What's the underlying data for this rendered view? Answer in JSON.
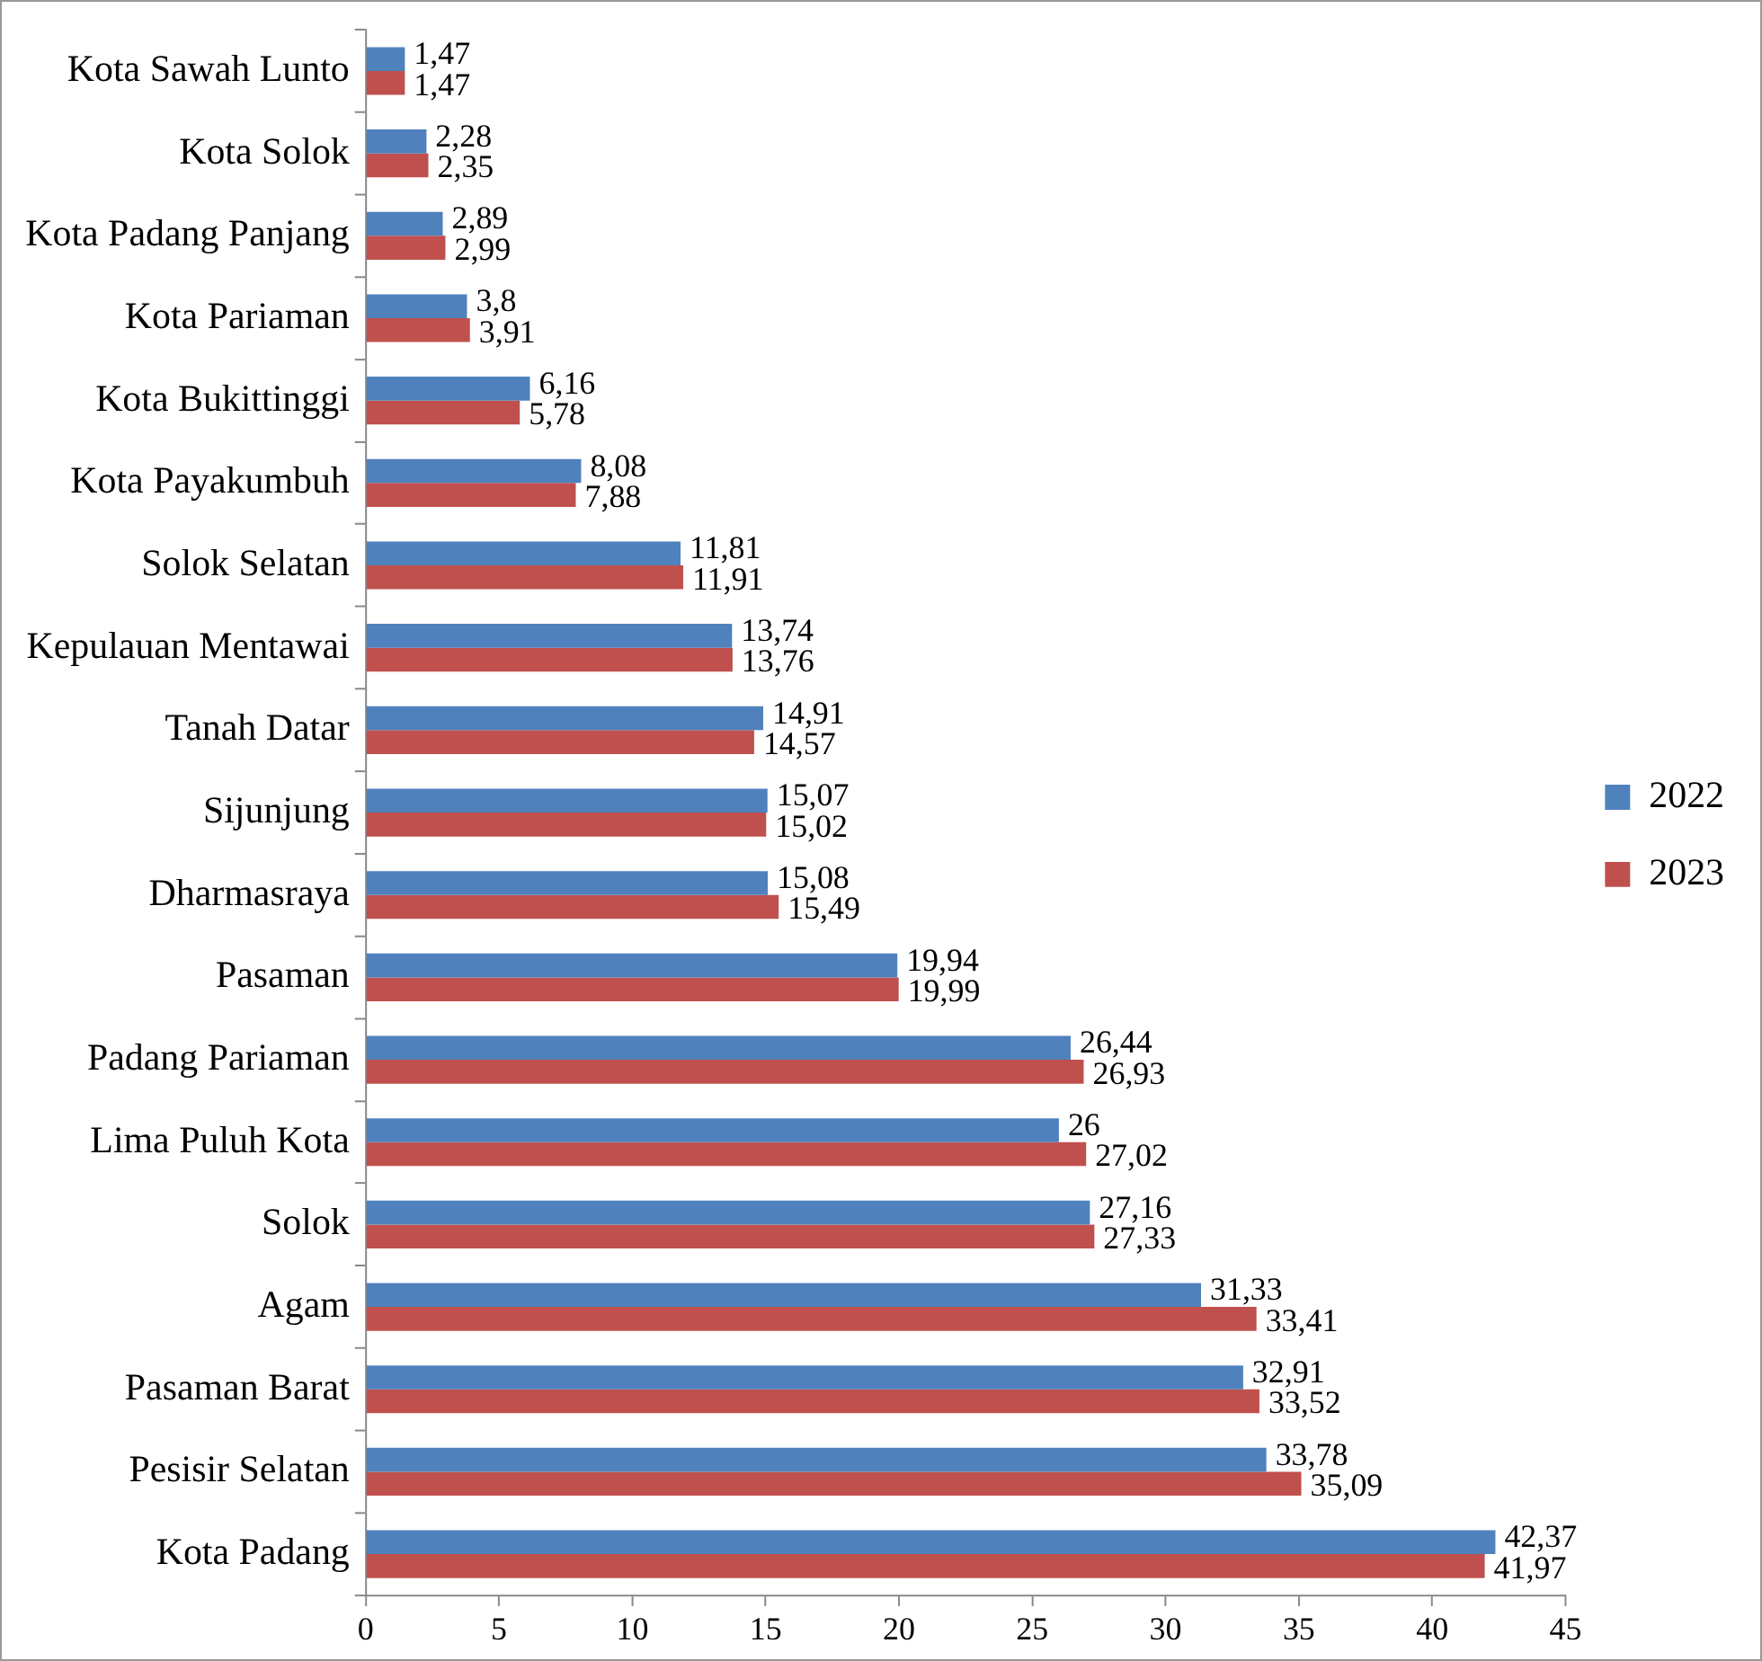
{
  "chart_data": {
    "type": "bar",
    "orientation": "horizontal",
    "categories": [
      "Kota Sawah Lunto",
      "Kota Solok",
      "Kota Padang Panjang",
      "Kota Pariaman",
      "Kota Bukittinggi",
      "Kota Payakumbuh",
      "Solok Selatan",
      "Kepulauan Mentawai",
      "Tanah Datar",
      "Sijunjung",
      "Dharmasraya",
      "Pasaman",
      "Padang Pariaman",
      "Lima Puluh Kota",
      "Solok",
      "Agam",
      "Pasaman Barat",
      "Pesisir Selatan",
      "Kota Padang"
    ],
    "series": [
      {
        "name": "2022",
        "color": "#4f81bd",
        "values": [
          1.47,
          2.28,
          2.89,
          3.8,
          6.16,
          8.08,
          11.81,
          13.74,
          14.91,
          15.07,
          15.08,
          19.94,
          26.44,
          26,
          27.16,
          31.33,
          32.91,
          33.78,
          42.37
        ],
        "value_labels": [
          "1,47",
          "2,28",
          "2,89",
          "3,8",
          "6,16",
          "8,08",
          "11,81",
          "13,74",
          "14,91",
          "15,07",
          "15,08",
          "19,94",
          "26,44",
          "26",
          "27,16",
          "31,33",
          "32,91",
          "33,78",
          "42,37"
        ]
      },
      {
        "name": "2023",
        "color": "#c0504d",
        "values": [
          1.47,
          2.35,
          2.99,
          3.91,
          5.78,
          7.88,
          11.91,
          13.76,
          14.57,
          15.02,
          15.49,
          19.99,
          26.93,
          27.02,
          27.33,
          33.41,
          33.52,
          35.09,
          41.97
        ],
        "value_labels": [
          "1,47",
          "2,35",
          "2,99",
          "3,91",
          "5,78",
          "7,88",
          "11,91",
          "13,76",
          "14,57",
          "15,02",
          "15,49",
          "19,99",
          "26,93",
          "27,02",
          "27,33",
          "33,41",
          "33,52",
          "35,09",
          "41,97"
        ]
      }
    ],
    "xlim": [
      0,
      45
    ],
    "xticks": [
      0,
      5,
      10,
      15,
      20,
      25,
      30,
      35,
      40,
      45
    ],
    "grid": false,
    "legend": "right"
  }
}
